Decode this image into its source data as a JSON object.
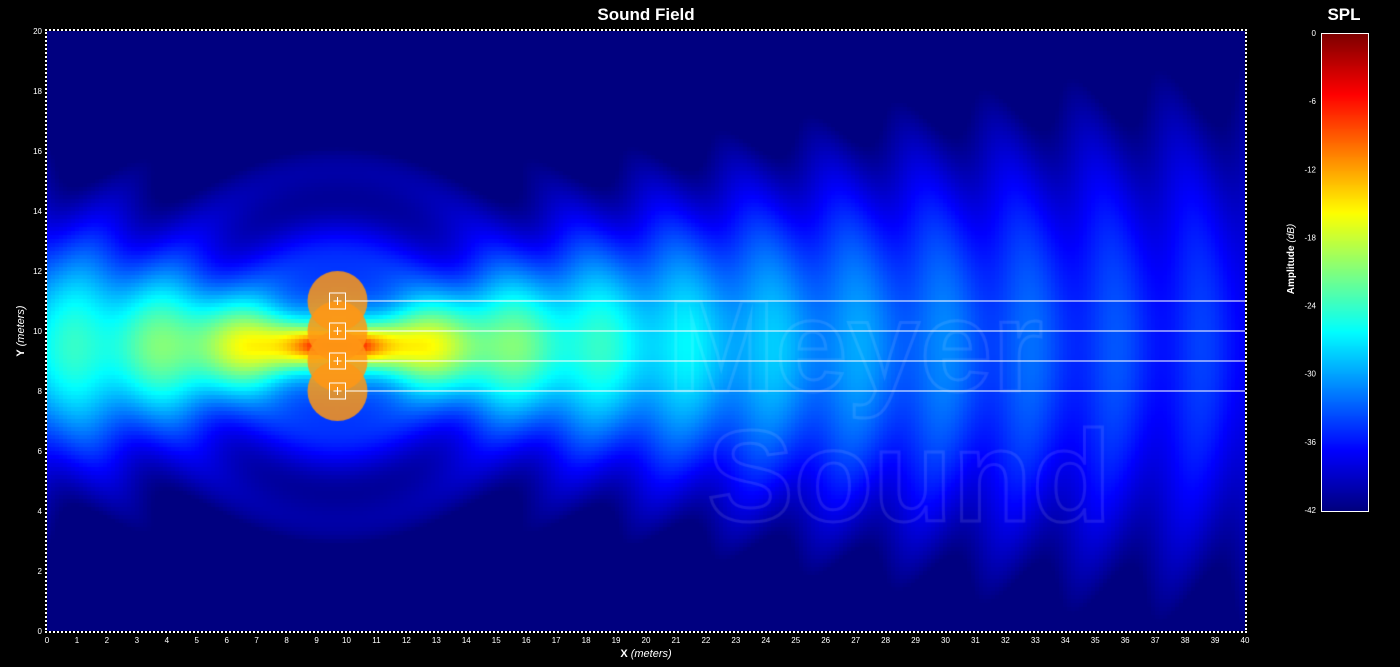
{
  "chart_data": {
    "type": "heatmap",
    "title": "Sound Field",
    "xlabel": "X",
    "xlabel_unit": "(meters)",
    "ylabel": "Y",
    "ylabel_unit": "(meters)",
    "xlim": [
      0,
      40
    ],
    "ylim": [
      0,
      20
    ],
    "x_ticks": [
      "0",
      "1",
      "2",
      "3",
      "4",
      "5",
      "6",
      "7",
      "8",
      "9",
      "10",
      "11",
      "12",
      "13",
      "14",
      "15",
      "16",
      "17",
      "18",
      "19",
      "20",
      "21",
      "22",
      "23",
      "24",
      "25",
      "26",
      "27",
      "28",
      "29",
      "30",
      "31",
      "32",
      "33",
      "34",
      "35",
      "36",
      "37",
      "38",
      "39",
      "40"
    ],
    "y_ticks": [
      "0",
      "2",
      "4",
      "6",
      "8",
      "10",
      "12",
      "14",
      "16",
      "18",
      "20"
    ],
    "sources": [
      {
        "x": 9.7,
        "y": 8
      },
      {
        "x": 9.7,
        "y": 9
      },
      {
        "x": 9.7,
        "y": 10
      },
      {
        "x": 9.7,
        "y": 11
      }
    ],
    "colorbar": {
      "title": "SPL",
      "label": "Amplitude",
      "label_unit": "(dB)",
      "range": [
        -42,
        0
      ],
      "ticks": [
        "0",
        "-6",
        "-12",
        "-18",
        "-24",
        "-30",
        "-36",
        "-42"
      ],
      "colormap": "jet"
    },
    "watermark": [
      "Meyer",
      "Sound"
    ]
  },
  "colors": {
    "background": "#000000",
    "frame": "#ffffff",
    "source_line": "#ffffff"
  }
}
